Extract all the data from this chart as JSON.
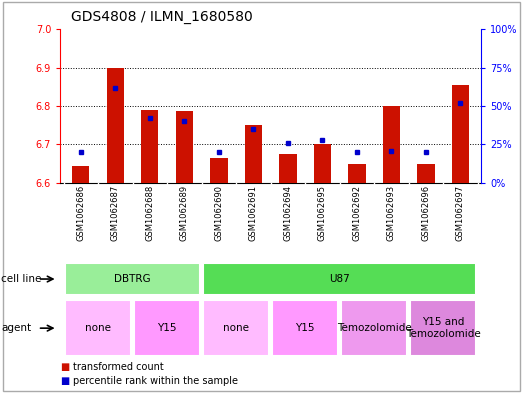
{
  "title": "GDS4808 / ILMN_1680580",
  "samples": [
    "GSM1062686",
    "GSM1062687",
    "GSM1062688",
    "GSM1062689",
    "GSM1062690",
    "GSM1062691",
    "GSM1062694",
    "GSM1062695",
    "GSM1062692",
    "GSM1062693",
    "GSM1062696",
    "GSM1062697"
  ],
  "red_values": [
    6.645,
    6.9,
    6.79,
    6.787,
    6.665,
    6.75,
    6.675,
    6.7,
    6.65,
    6.8,
    6.648,
    6.855
  ],
  "blue_values": [
    20,
    62,
    42,
    40,
    20,
    35,
    26,
    28,
    20,
    21,
    20,
    52
  ],
  "ymin": 6.6,
  "ymax": 7.0,
  "y_ticks": [
    6.6,
    6.7,
    6.8,
    6.9,
    7.0
  ],
  "y2min": 0,
  "y2max": 100,
  "y2_ticks": [
    0,
    25,
    50,
    75,
    100
  ],
  "y2_labels": [
    "0%",
    "25%",
    "50%",
    "75%",
    "100%"
  ],
  "bar_color": "#cc1100",
  "dot_color": "#0000cc",
  "bg_color": "#ffffff",
  "gray_bg": "#d0d0d0",
  "cell_line_groups": [
    {
      "label": "DBTRG",
      "start": 0,
      "end": 3,
      "color": "#99ee99"
    },
    {
      "label": "U87",
      "start": 4,
      "end": 11,
      "color": "#55dd55"
    }
  ],
  "agent_groups": [
    {
      "label": "none",
      "start": 0,
      "end": 1,
      "color": "#ffbbff"
    },
    {
      "label": "Y15",
      "start": 2,
      "end": 3,
      "color": "#ff99ff"
    },
    {
      "label": "none",
      "start": 4,
      "end": 5,
      "color": "#ffbbff"
    },
    {
      "label": "Y15",
      "start": 6,
      "end": 7,
      "color": "#ff99ff"
    },
    {
      "label": "Temozolomide",
      "start": 8,
      "end": 9,
      "color": "#ee99ee"
    },
    {
      "label": "Y15 and\nTemozolomide",
      "start": 10,
      "end": 11,
      "color": "#dd88dd"
    }
  ],
  "title_fontsize": 10,
  "tick_fontsize": 7,
  "sample_fontsize": 6,
  "label_fontsize": 7.5,
  "group_fontsize": 7.5
}
